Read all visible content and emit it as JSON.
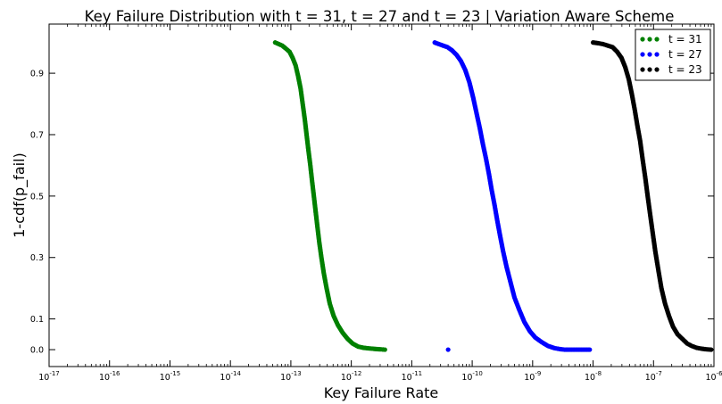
{
  "chart_data": {
    "type": "scatter",
    "title": "Key Failure Distribution with t = 31, t = 27 and t = 23 | Variation Aware Scheme",
    "xlabel": "Key Failure Rate",
    "ylabel": "1-cdf(p_fail)",
    "x_scale": "log",
    "xlim": [
      1e-17,
      1e-06
    ],
    "ylim": [
      -0.055,
      1.06
    ],
    "grid": false,
    "legend_position": "top-right",
    "x_ticks": [
      {
        "base": "10",
        "exp": "-17"
      },
      {
        "base": "10",
        "exp": "-16"
      },
      {
        "base": "10",
        "exp": "-15"
      },
      {
        "base": "10",
        "exp": "-14"
      },
      {
        "base": "10",
        "exp": "-13"
      },
      {
        "base": "10",
        "exp": "-12"
      },
      {
        "base": "10",
        "exp": "-11"
      },
      {
        "base": "10",
        "exp": "-10"
      },
      {
        "base": "10",
        "exp": "-9"
      },
      {
        "base": "10",
        "exp": "-8"
      },
      {
        "base": "10",
        "exp": "-7"
      },
      {
        "base": "10",
        "exp": "-6"
      }
    ],
    "y_ticks": [
      "0.0",
      "0.1",
      "0.3",
      "0.5",
      "0.7",
      "0.9"
    ],
    "series": [
      {
        "name": "t = 31",
        "color": "#008000",
        "points": [
          [
            5.5e-14,
            1.0
          ],
          [
            6.3e-14,
            0.995
          ],
          [
            7.2e-14,
            0.99
          ],
          [
            8.3e-14,
            0.98
          ],
          [
            9.5e-14,
            0.97
          ],
          [
            1.07e-13,
            0.95
          ],
          [
            1.2e-13,
            0.925
          ],
          [
            1.32e-13,
            0.89
          ],
          [
            1.45e-13,
            0.85
          ],
          [
            1.57e-13,
            0.8
          ],
          [
            1.7e-13,
            0.75
          ],
          [
            1.82e-13,
            0.7
          ],
          [
            1.95e-13,
            0.65
          ],
          [
            2.1e-13,
            0.6
          ],
          [
            2.24e-13,
            0.55
          ],
          [
            2.4e-13,
            0.5
          ],
          [
            2.57e-13,
            0.45
          ],
          [
            2.75e-13,
            0.4
          ],
          [
            2.95e-13,
            0.35
          ],
          [
            3.2e-13,
            0.3
          ],
          [
            3.5e-13,
            0.25
          ],
          [
            3.9e-13,
            0.2
          ],
          [
            4.4e-13,
            0.15
          ],
          [
            5.1e-13,
            0.11
          ],
          [
            6e-13,
            0.08
          ],
          [
            7.2e-13,
            0.055
          ],
          [
            8.7e-13,
            0.035
          ],
          [
            1.05e-12,
            0.02
          ],
          [
            1.3e-12,
            0.01
          ],
          [
            1.6e-12,
            0.006
          ],
          [
            2e-12,
            0.004
          ],
          [
            2.6e-12,
            0.002
          ],
          [
            3.1e-12,
            0.001
          ],
          [
            3.6e-12,
            0.0
          ]
        ]
      },
      {
        "name": "t = 27",
        "color": "#0000ff",
        "points": [
          [
            4e-11,
            0.0
          ],
          [
            2.4e-11,
            1.0
          ],
          [
            2.8e-11,
            0.995
          ],
          [
            3.3e-11,
            0.99
          ],
          [
            3.9e-11,
            0.985
          ],
          [
            4.6e-11,
            0.975
          ],
          [
            5.5e-11,
            0.96
          ],
          [
            6.5e-11,
            0.94
          ],
          [
            7.7e-11,
            0.91
          ],
          [
            9e-11,
            0.87
          ],
          [
            1.04e-10,
            0.82
          ],
          [
            1.18e-10,
            0.77
          ],
          [
            1.34e-10,
            0.72
          ],
          [
            1.5e-10,
            0.67
          ],
          [
            1.7e-10,
            0.62
          ],
          [
            1.9e-10,
            0.57
          ],
          [
            2.1e-10,
            0.52
          ],
          [
            2.35e-10,
            0.47
          ],
          [
            2.6e-10,
            0.42
          ],
          [
            2.9e-10,
            0.37
          ],
          [
            3.25e-10,
            0.32
          ],
          [
            3.7e-10,
            0.27
          ],
          [
            4.3e-10,
            0.22
          ],
          [
            5e-10,
            0.17
          ],
          [
            6e-10,
            0.13
          ],
          [
            7.3e-10,
            0.09
          ],
          [
            9e-10,
            0.06
          ],
          [
            1.1e-09,
            0.04
          ],
          [
            1.4e-09,
            0.025
          ],
          [
            1.8e-09,
            0.012
          ],
          [
            2.3e-09,
            0.005
          ],
          [
            2.8e-09,
            0.002
          ],
          [
            3.4e-09,
            0.0
          ],
          [
            8.8e-09,
            0.0
          ]
        ]
      },
      {
        "name": "t = 23",
        "color": "#000000",
        "points": [
          [
            1e-08,
            1.0
          ],
          [
            1.2e-08,
            0.998
          ],
          [
            1.45e-08,
            0.995
          ],
          [
            1.75e-08,
            0.99
          ],
          [
            2.1e-08,
            0.985
          ],
          [
            2.5e-08,
            0.97
          ],
          [
            2.95e-08,
            0.95
          ],
          [
            3.4e-08,
            0.92
          ],
          [
            3.9e-08,
            0.88
          ],
          [
            4.4e-08,
            0.83
          ],
          [
            4.9e-08,
            0.78
          ],
          [
            5.4e-08,
            0.73
          ],
          [
            6e-08,
            0.68
          ],
          [
            6.6e-08,
            0.62
          ],
          [
            7.3e-08,
            0.56
          ],
          [
            8e-08,
            0.5
          ],
          [
            8.8e-08,
            0.44
          ],
          [
            9.7e-08,
            0.38
          ],
          [
            1.07e-07,
            0.32
          ],
          [
            1.2e-07,
            0.26
          ],
          [
            1.35e-07,
            0.2
          ],
          [
            1.55e-07,
            0.15
          ],
          [
            1.8e-07,
            0.11
          ],
          [
            2.1e-07,
            0.075
          ],
          [
            2.5e-07,
            0.05
          ],
          [
            3e-07,
            0.035
          ],
          [
            3.6e-07,
            0.02
          ],
          [
            4.3e-07,
            0.012
          ],
          [
            5.2e-07,
            0.006
          ],
          [
            6.3e-07,
            0.003
          ],
          [
            7.6e-07,
            0.001
          ],
          [
            9e-07,
            0.0
          ]
        ]
      }
    ]
  }
}
